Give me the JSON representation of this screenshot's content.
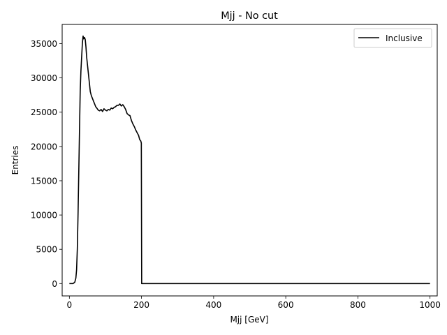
{
  "chart_data": {
    "type": "line",
    "title": "Mjj - No cut",
    "xlabel": "Mjj [GeV]",
    "ylabel": "Entries",
    "xlim": [
      -20,
      1020
    ],
    "ylim": [
      -1800,
      37800
    ],
    "xticks": [
      0,
      200,
      400,
      600,
      800,
      1000
    ],
    "yticks": [
      0,
      5000,
      10000,
      15000,
      20000,
      25000,
      30000,
      35000
    ],
    "xtick_labels": [
      "0",
      "200",
      "400",
      "600",
      "800",
      "1000"
    ],
    "ytick_labels": [
      "0",
      "5000",
      "10000",
      "15000",
      "20000",
      "25000",
      "30000",
      "35000"
    ],
    "grid": false,
    "legend_position": "top-right",
    "series": [
      {
        "name": "Inclusive",
        "color": "#000000",
        "x": [
          0,
          10,
          15,
          18,
          20,
          22,
          24,
          26,
          28,
          30,
          32,
          34,
          36,
          38,
          40,
          42,
          44,
          46,
          48,
          50,
          52,
          55,
          58,
          61,
          64,
          67,
          70,
          73,
          76,
          80,
          84,
          88,
          92,
          96,
          100,
          104,
          108,
          112,
          116,
          120,
          124,
          128,
          132,
          136,
          140,
          144,
          148,
          152,
          156,
          160,
          164,
          168,
          172,
          176,
          180,
          184,
          188,
          192,
          195,
          198,
          199.5,
          200.5,
          210,
          400,
          600,
          800,
          1000
        ],
        "y": [
          0,
          0,
          200,
          800,
          2000,
          5000,
          10000,
          16000,
          22000,
          28000,
          31000,
          33000,
          35000,
          36100,
          35700,
          35900,
          35600,
          34500,
          33000,
          32000,
          31000,
          29500,
          28000,
          27400,
          27000,
          26600,
          26200,
          25800,
          25600,
          25300,
          25200,
          25400,
          25100,
          25500,
          25300,
          25200,
          25400,
          25300,
          25600,
          25500,
          25700,
          25800,
          26000,
          26000,
          26200,
          25900,
          26100,
          25800,
          25400,
          24800,
          24600,
          24500,
          23800,
          23300,
          22900,
          22400,
          22000,
          21600,
          21000,
          20800,
          20500,
          0,
          0,
          0,
          0,
          0,
          0
        ]
      }
    ]
  }
}
